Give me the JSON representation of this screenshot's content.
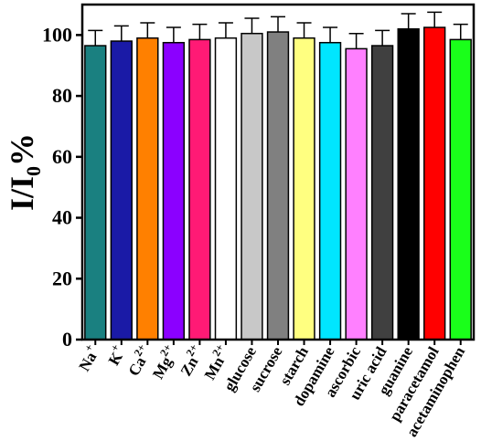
{
  "chart_data": {
    "type": "bar",
    "title": "",
    "xlabel": "",
    "ylabel": "I/I0%",
    "ylabel_parts": {
      "main": "I/I",
      "sub": "0",
      "unit": "%"
    },
    "ylim": [
      0,
      110
    ],
    "yticks": [
      0,
      20,
      40,
      60,
      80,
      100
    ],
    "grid": false,
    "legend": "none",
    "categories": [
      {
        "label": "Na",
        "sup": "+"
      },
      {
        "label": "K",
        "sup": "+"
      },
      {
        "label": "Ca",
        "sup": "2+"
      },
      {
        "label": "Mg",
        "sup": "2+"
      },
      {
        "label": "Zn",
        "sup": "2+"
      },
      {
        "label": "Mn",
        "sup": "2+"
      },
      {
        "label": "glucose",
        "sup": ""
      },
      {
        "label": "sucrose",
        "sup": ""
      },
      {
        "label": "starch",
        "sup": ""
      },
      {
        "label": "dopamine",
        "sup": ""
      },
      {
        "label": "ascorbic",
        "sup": ""
      },
      {
        "label": "uric acid",
        "sup": ""
      },
      {
        "label": "guanine",
        "sup": ""
      },
      {
        "label": "paracetamol",
        "sup": ""
      },
      {
        "label": "acetaminophen",
        "sup": ""
      }
    ],
    "values": [
      96.5,
      98,
      99,
      97.5,
      98.5,
      99,
      100.5,
      101,
      99,
      97.5,
      95.5,
      96.5,
      102,
      102.5,
      98.5
    ],
    "errors": [
      5,
      5,
      5,
      5,
      5,
      5,
      5,
      5,
      5,
      5,
      5,
      5,
      5,
      5,
      5
    ],
    "colors": [
      "#1a8080",
      "#1a1aa6",
      "#ff8000",
      "#8b00ff",
      "#ff1a75",
      "#ffffff",
      "#c8c8c8",
      "#808080",
      "#ffff80",
      "#00e6ff",
      "#ff80ff",
      "#404040",
      "#000000",
      "#ff0000",
      "#1aff1a"
    ]
  }
}
